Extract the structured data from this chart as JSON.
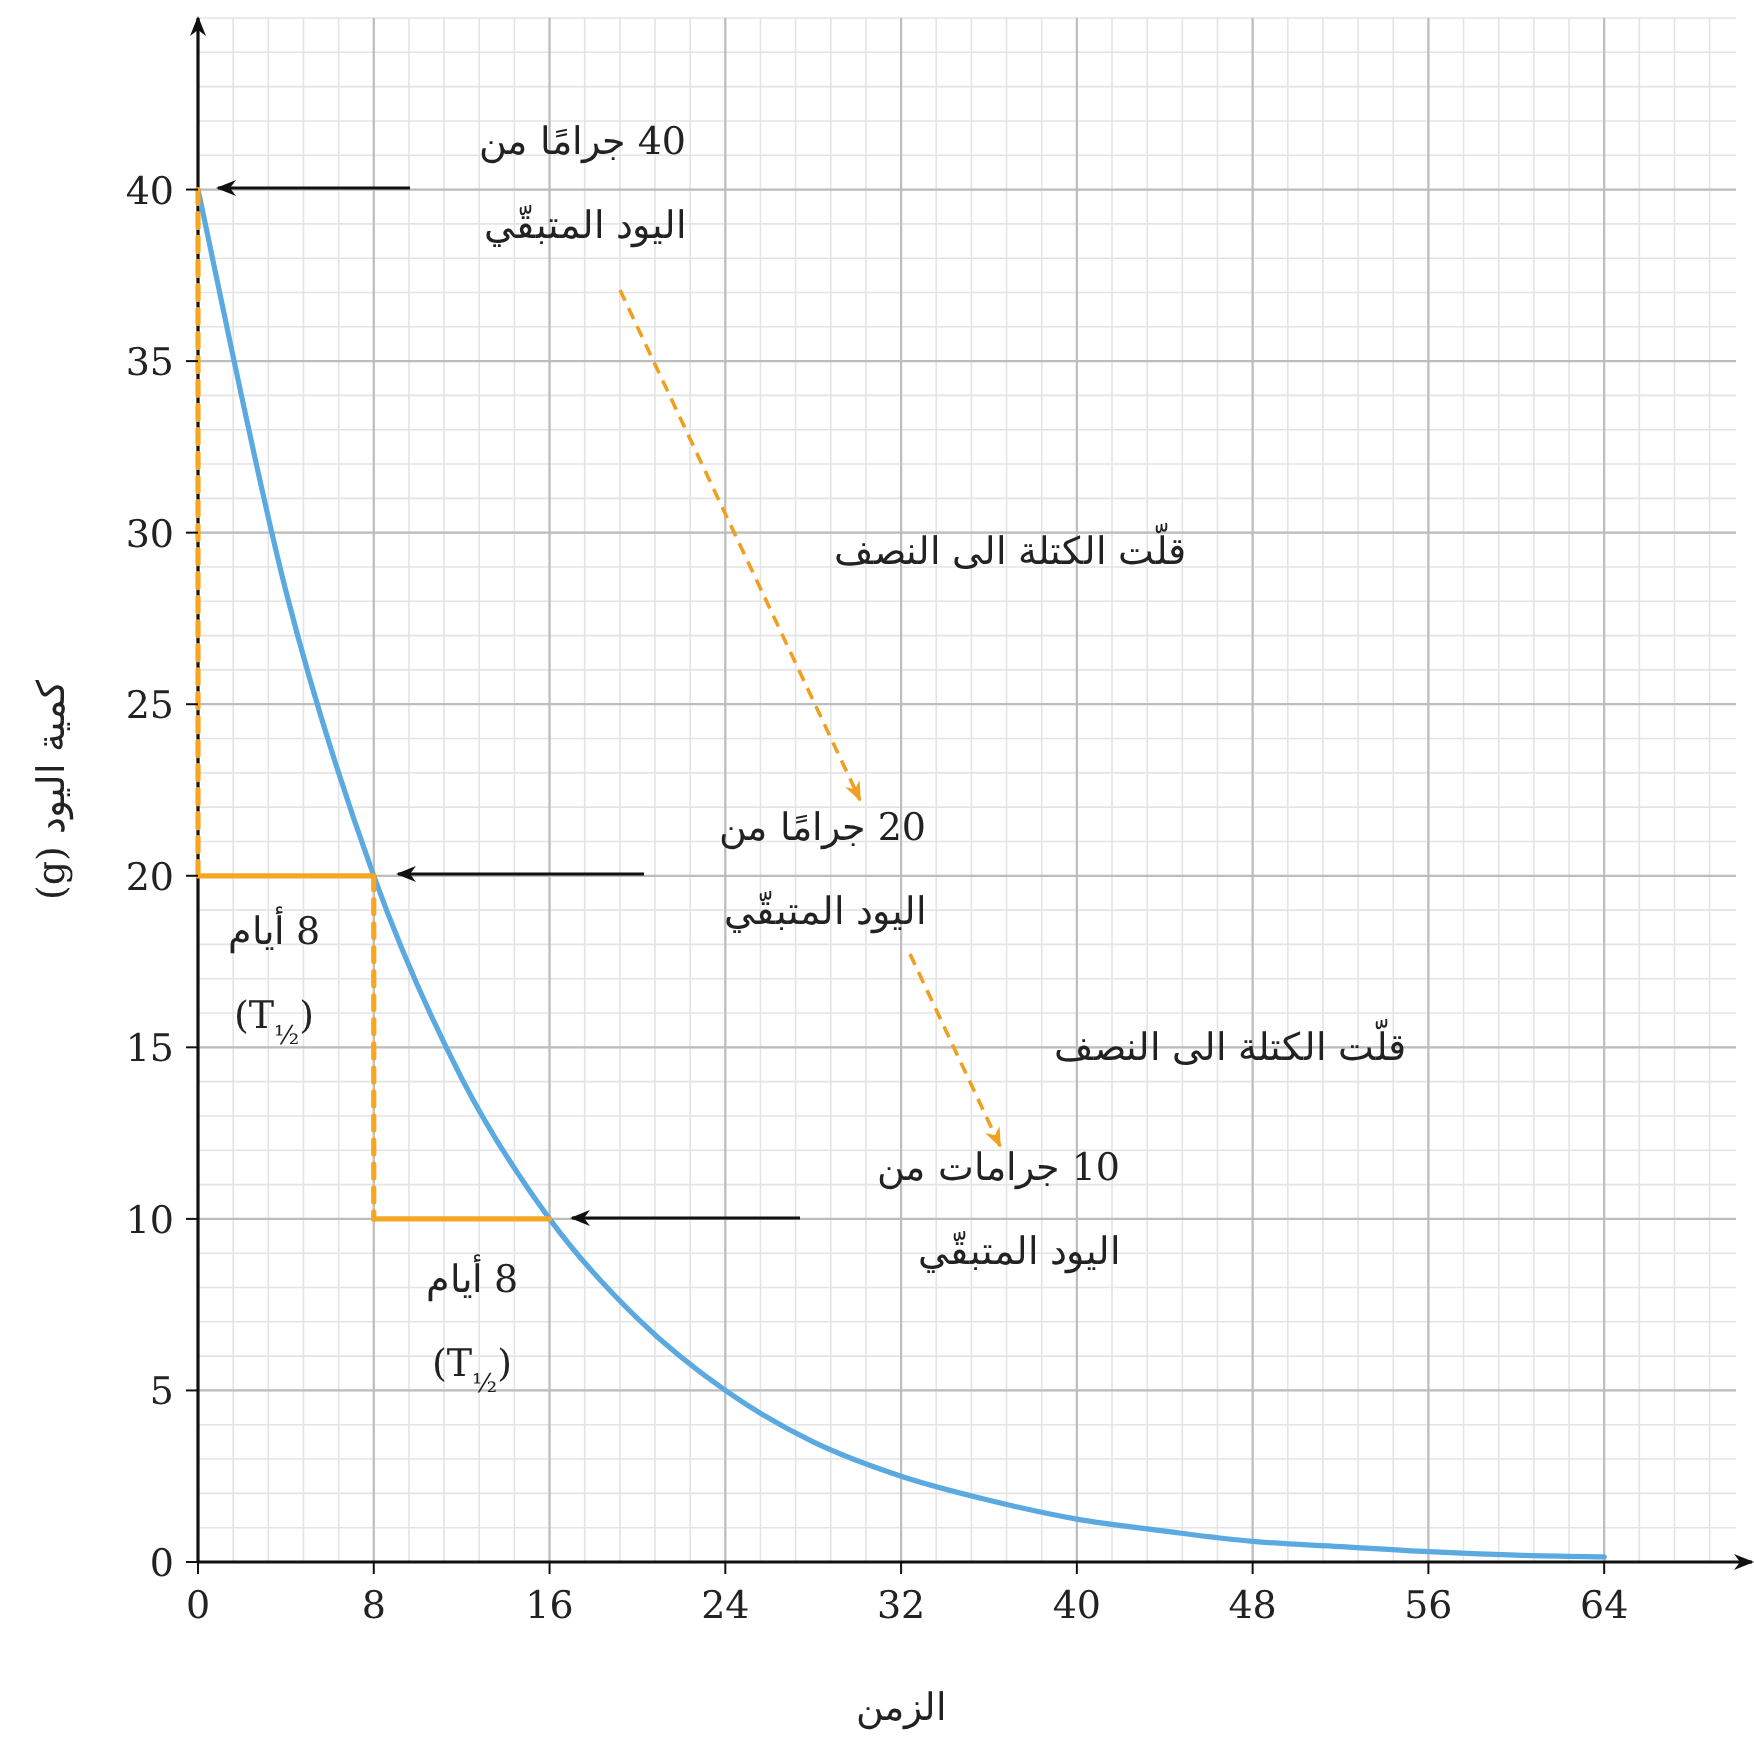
{
  "chart_data": {
    "type": "line",
    "xlabel": "الزمن",
    "ylabel": "كمية اليود (g)",
    "xlim": [
      0,
      70
    ],
    "ylim": [
      0,
      45
    ],
    "xticks": [
      0,
      8,
      16,
      24,
      32,
      40,
      48,
      56,
      64
    ],
    "yticks": [
      0,
      5,
      10,
      15,
      20,
      25,
      30,
      35,
      40
    ],
    "grid": true,
    "x": [
      0,
      4,
      8,
      12,
      16,
      20,
      24,
      28,
      32,
      36,
      40,
      44,
      48,
      52,
      56,
      60,
      64
    ],
    "series": [
      {
        "color": "#5aa9e0",
        "values": [
          40,
          28.3,
          20,
          14.1,
          10,
          7.1,
          5,
          3.5,
          2.5,
          1.8,
          1.25,
          0.9,
          0.6,
          0.45,
          0.3,
          0.2,
          0.15
        ]
      },
      {
        "type": "line",
        "x": [
          0,
          0
        ],
        "values": [
          40,
          20
        ],
        "color": "#f5a623",
        "line_style": "dashed"
      },
      {
        "type": "line",
        "x": [
          0,
          8
        ],
        "values": [
          20,
          20
        ],
        "color": "#f5a623",
        "line_style": "solid"
      },
      {
        "type": "line",
        "x": [
          8,
          8
        ],
        "values": [
          20,
          10
        ],
        "color": "#f5a623",
        "line_style": "dashed"
      },
      {
        "type": "line",
        "x": [
          8,
          16
        ],
        "values": [
          10,
          10
        ],
        "color": "#f5a623",
        "line_style": "solid"
      }
    ],
    "annotations": [
      "40 جرامًا من\nاليود المتبقّي",
      "20 جرامًا من\nاليود المتبقّي",
      "10 جرامات من\nاليود المتبقّي",
      "قلّت الكتلة الى النصف",
      "قلّت الكتلة الى النصف",
      "8 أيام\n(T$_{½}$)",
      "8 أيام\n(T$_{½}$)"
    ]
  }
}
